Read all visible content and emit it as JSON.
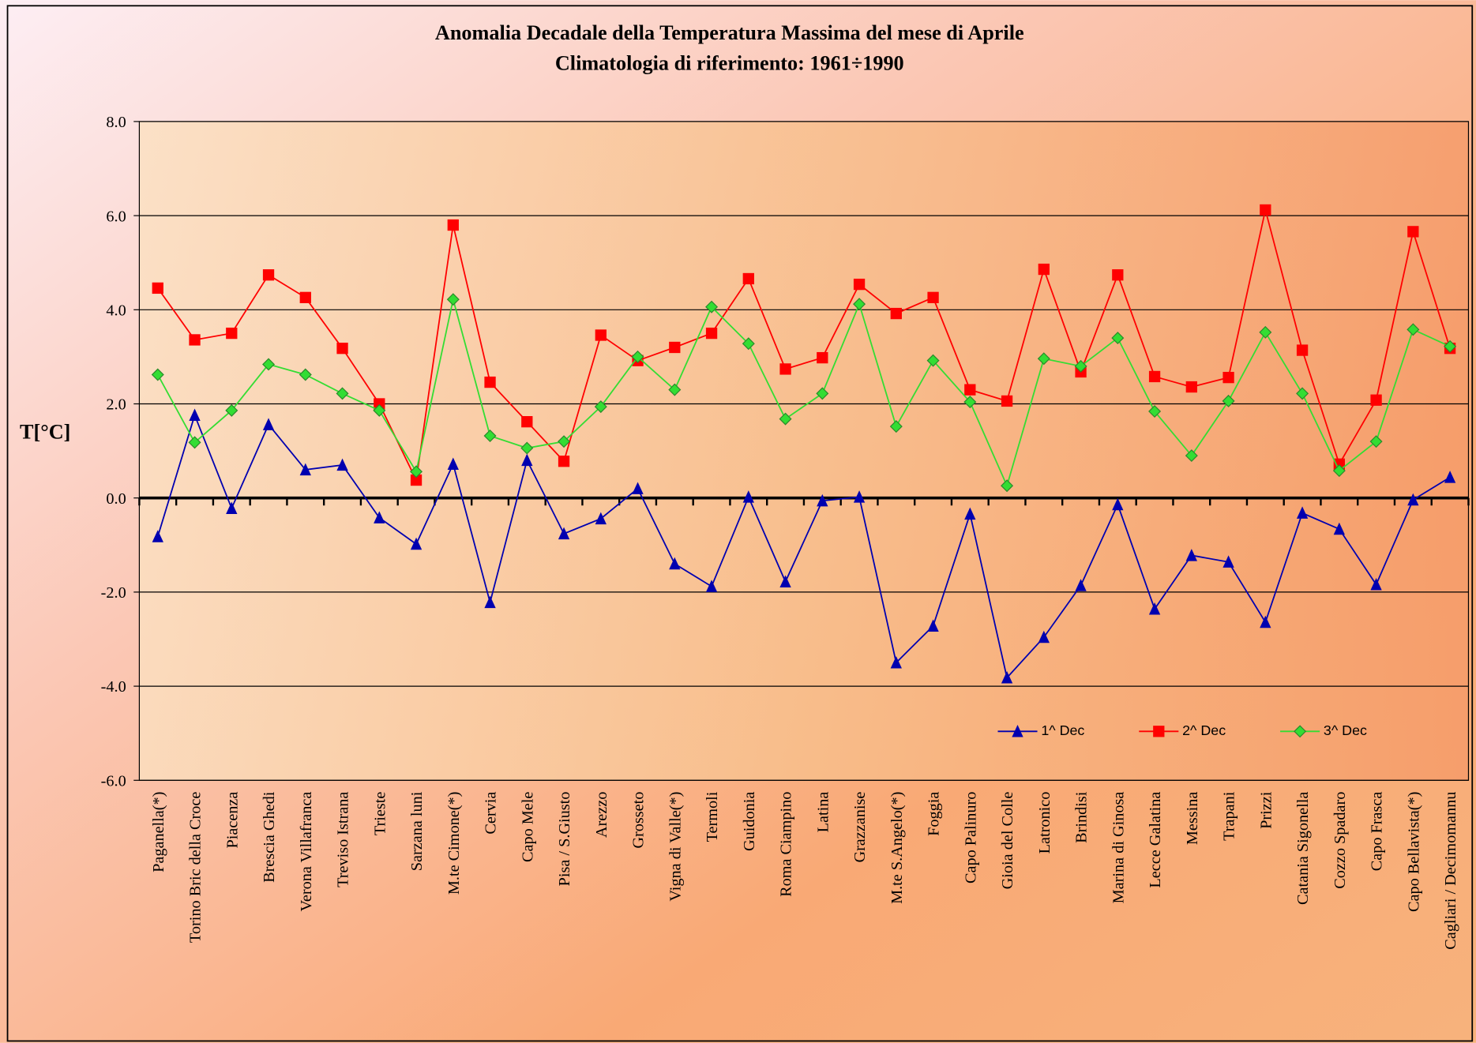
{
  "chart_data": {
    "type": "line",
    "title": "Anomalia Decadale della Temperatura Massima del mese di Aprile",
    "subtitle": "Climatologia di riferimento: 1961÷1990",
    "y_label": "T[°C]",
    "categories": [
      "Paganella(*)",
      "Torino Bric della Croce",
      "Piacenza",
      "Brescia Ghedi",
      "Verona Villafranca",
      "Treviso Istrana",
      "Trieste",
      "Sarzana luni",
      "M.te Cimone(*)",
      "Cervia",
      "Capo Mele",
      "Pisa / S.Giusto",
      "Arezzo",
      "Grosseto",
      "Vigna di Valle(*)",
      "Termoli",
      "Guidonia",
      "Roma Ciampino",
      "Latina",
      "Grazzanise",
      "M.te S.Angelo(*)",
      "Foggia",
      "Capo Palinuro",
      "Gioia del Colle",
      "Latronico",
      "Brindisi",
      "Marina di Ginosa",
      "Lecce Galatina",
      "Messina",
      "Trapani",
      "Prizzi",
      "Catania Sigonella",
      "Cozzo Spadaro",
      "Capo Frasca",
      "Capo Bellavista(*)",
      "Cagliari / Decimomannu"
    ],
    "series": [
      {
        "name": "1^ Dec",
        "color": "#0000b0",
        "marker": "triangle",
        "values": [
          -0.82,
          1.76,
          -0.22,
          1.56,
          0.6,
          0.7,
          -0.42,
          -0.98,
          0.72,
          -2.22,
          0.8,
          -0.76,
          -0.44,
          0.2,
          -1.4,
          -1.88,
          0.02,
          -1.78,
          -0.06,
          0.02,
          -3.5,
          -2.72,
          -0.34,
          -3.82,
          -2.96,
          -1.86,
          -0.14,
          -2.36,
          -1.22,
          -1.36,
          -2.64,
          -0.32,
          -0.66,
          -1.84,
          -0.04,
          0.44
        ]
      },
      {
        "name": "2^ Dec",
        "color": "#ff0000",
        "marker": "square",
        "values": [
          4.46,
          3.36,
          3.5,
          4.74,
          4.26,
          3.18,
          2.0,
          0.38,
          5.8,
          2.46,
          1.62,
          0.78,
          3.46,
          2.92,
          3.2,
          3.5,
          4.66,
          2.74,
          2.98,
          4.54,
          3.92,
          4.26,
          2.3,
          2.06,
          4.86,
          2.68,
          4.74,
          2.58,
          2.36,
          2.56,
          6.12,
          3.14,
          0.72,
          2.08,
          5.66,
          3.18
        ]
      },
      {
        "name": "3^ Dec",
        "color": "#33dd33",
        "marker": "diamond",
        "values": [
          2.62,
          1.18,
          1.86,
          2.84,
          2.62,
          2.22,
          1.86,
          0.56,
          4.22,
          1.32,
          1.06,
          1.2,
          1.94,
          3.0,
          2.3,
          4.06,
          3.28,
          1.68,
          2.22,
          4.12,
          1.52,
          2.92,
          2.04,
          0.26,
          2.96,
          2.8,
          3.4,
          1.84,
          0.9,
          2.06,
          3.52,
          2.22,
          0.58,
          1.2,
          3.58,
          3.22
        ]
      }
    ],
    "ylim": [
      -6,
      8
    ],
    "yticks": [
      {
        "value": -6,
        "label": "-6.0"
      },
      {
        "value": -4,
        "label": "-4.0"
      },
      {
        "value": -2,
        "label": "-2.0"
      },
      {
        "value": 0,
        "label": "0.0"
      },
      {
        "value": 2,
        "label": "2.0"
      },
      {
        "value": 4,
        "label": "4.0"
      },
      {
        "value": 6,
        "label": "6.0"
      },
      {
        "value": 8,
        "label": "8.0"
      }
    ],
    "grid": true,
    "legend": "bottom-right"
  }
}
